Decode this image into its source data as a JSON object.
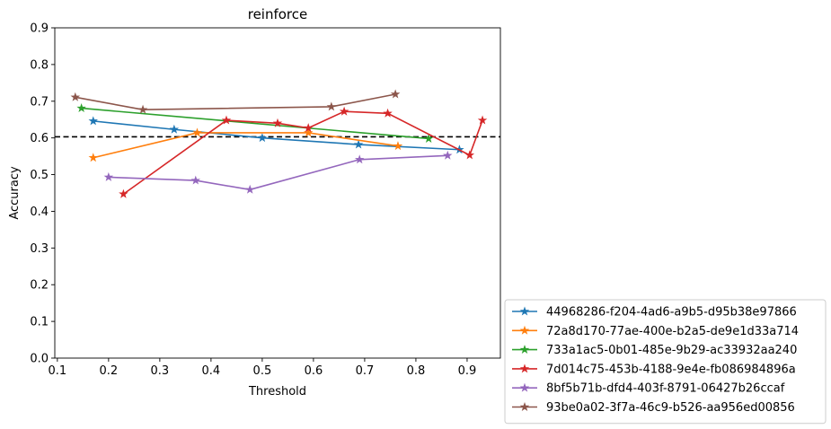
{
  "chart_data": {
    "type": "line",
    "title": "reinforce",
    "xlabel": "Threshold",
    "ylabel": "Accuracy",
    "xlim": [
      0.095,
      0.965
    ],
    "ylim": [
      0.0,
      0.9
    ],
    "x_ticks": [
      0.1,
      0.2,
      0.3,
      0.4,
      0.5,
      0.6,
      0.7,
      0.8,
      0.9
    ],
    "x_tick_labels": [
      "0.1",
      "0.2",
      "0.3",
      "0.4",
      "0.5",
      "0.6",
      "0.7",
      "0.8",
      "0.9"
    ],
    "y_ticks": [
      0.0,
      0.1,
      0.2,
      0.3,
      0.4,
      0.5,
      0.6,
      0.7,
      0.8,
      0.9
    ],
    "y_tick_labels": [
      "0.0",
      "0.1",
      "0.2",
      "0.3",
      "0.4",
      "0.5",
      "0.6",
      "0.7",
      "0.8",
      "0.9"
    ],
    "grid": false,
    "legend_position": "outside-lower-right",
    "reference_line": {
      "y": 0.603,
      "style": "dashed",
      "color": "#000000"
    },
    "marker": "star",
    "series": [
      {
        "name": "44968286-f204-4ad6-a9b5-d95b38e97866",
        "color": "#1f77b4",
        "x": [
          0.17,
          0.328,
          0.5,
          0.688,
          0.885
        ],
        "y": [
          0.646,
          0.623,
          0.6,
          0.582,
          0.568
        ]
      },
      {
        "name": "72a8d170-77ae-400e-b2a5-de9e1d33a714",
        "color": "#ff7f0e",
        "x": [
          0.17,
          0.373,
          0.59,
          0.765
        ],
        "y": [
          0.546,
          0.614,
          0.614,
          0.578
        ]
      },
      {
        "name": "733a1ac5-0b01-485e-9b29-ac33932aa240",
        "color": "#2ca02c",
        "x": [
          0.147,
          0.825
        ],
        "y": [
          0.681,
          0.598
        ]
      },
      {
        "name": "7d014c75-453b-4188-9e4e-fb086984896a",
        "color": "#d62728",
        "x": [
          0.229,
          0.43,
          0.53,
          0.59,
          0.66,
          0.745,
          0.905,
          0.93
        ],
        "y": [
          0.447,
          0.648,
          0.64,
          0.627,
          0.672,
          0.667,
          0.553,
          0.648
        ]
      },
      {
        "name": "8bf5b71b-dfd4-403f-8791-06427b26ccaf",
        "color": "#9467bd",
        "x": [
          0.2,
          0.37,
          0.476,
          0.69,
          0.862
        ],
        "y": [
          0.493,
          0.484,
          0.459,
          0.541,
          0.552
        ]
      },
      {
        "name": "93be0a02-3f7a-46c9-b526-aa956ed00856",
        "color": "#8c564b",
        "x": [
          0.135,
          0.267,
          0.635,
          0.76
        ],
        "y": [
          0.711,
          0.677,
          0.685,
          0.719
        ]
      }
    ]
  }
}
